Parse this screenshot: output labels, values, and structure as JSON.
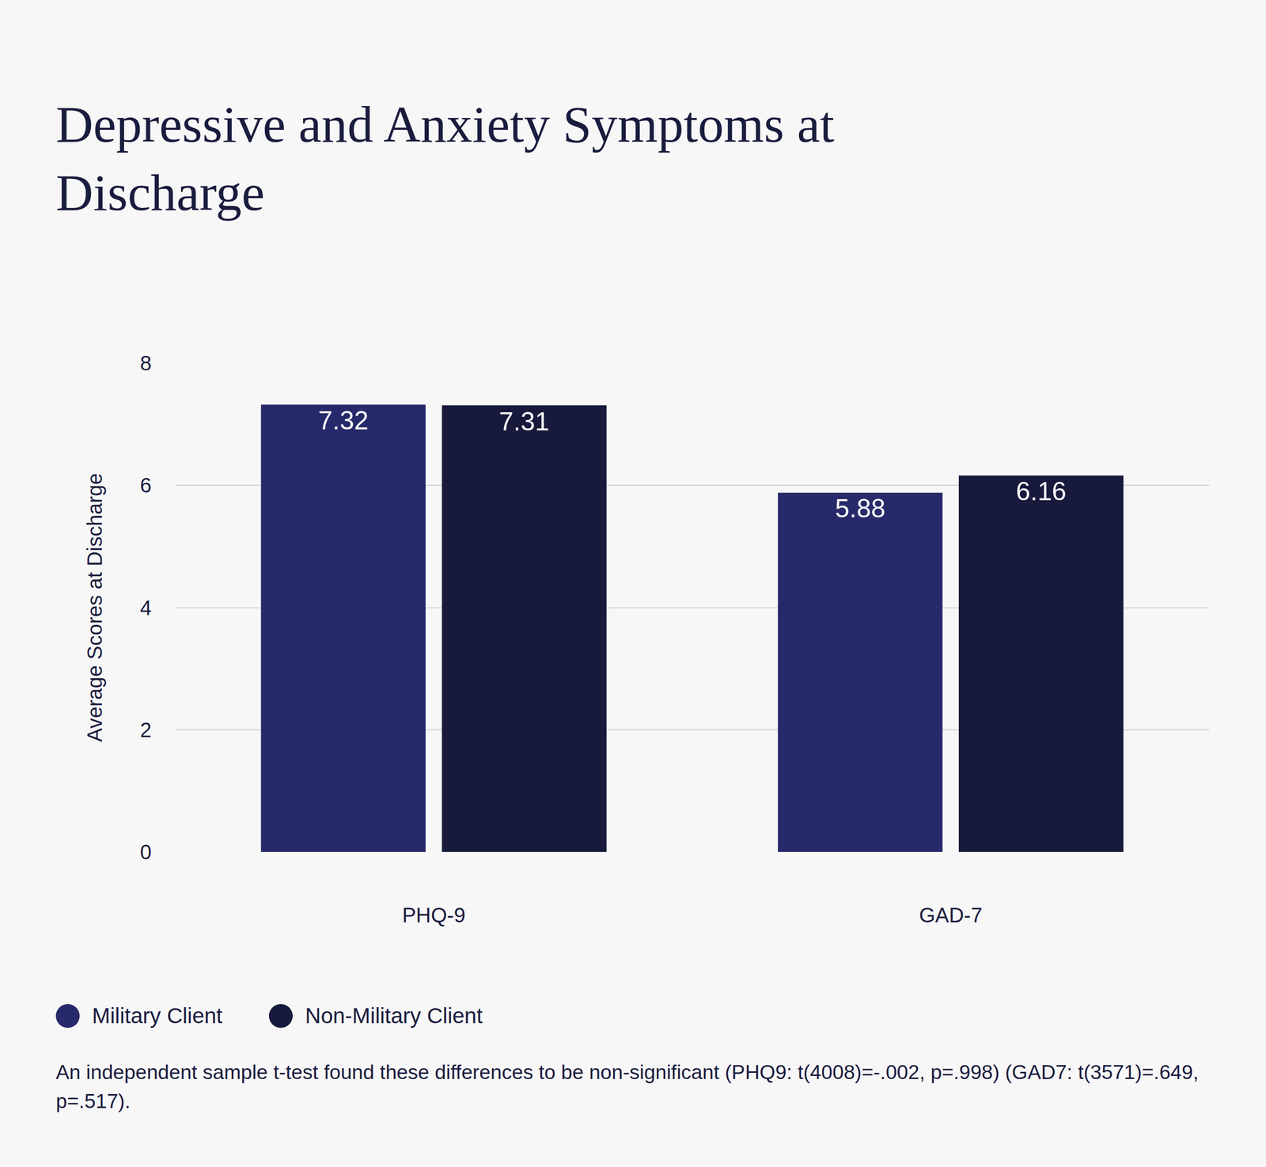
{
  "chart_data": {
    "type": "bar",
    "title": "Depressive and Anxiety Symptoms at Discharge",
    "y_label": "Average Scores at Discharge",
    "categories": [
      "PHQ-9",
      "GAD-7"
    ],
    "series": [
      {
        "name": "Military Client",
        "color": "#272a6a",
        "values": [
          7.32,
          5.88
        ]
      },
      {
        "name": "Non-Military Client",
        "color": "#181a3c",
        "values": [
          7.31,
          6.16
        ]
      }
    ],
    "ylim": [
      0,
      8
    ],
    "yticks": [
      0,
      2,
      4,
      6,
      8
    ],
    "grid": true,
    "data_labels": true,
    "legend": "bottom left",
    "annotations": [
      "An independent sample t-test found these differences to be non-significant (PHQ9: t(4008)=-.002, p=.998) (GAD7: t(3571)=.649, p=.517)."
    ]
  }
}
